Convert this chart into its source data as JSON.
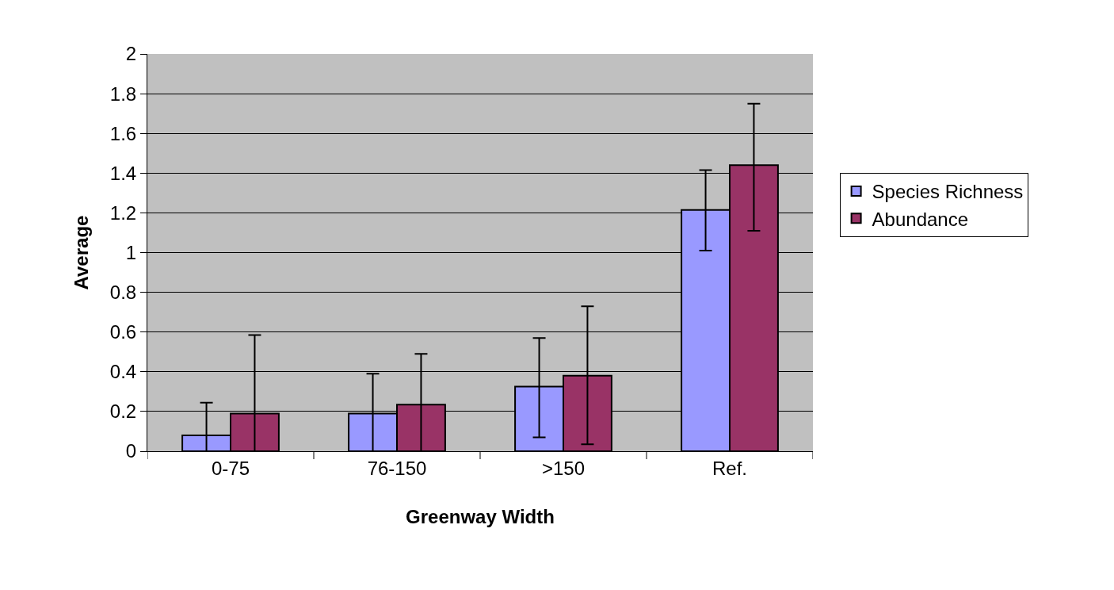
{
  "chart_data": {
    "type": "bar",
    "xlabel": "Greenway Width",
    "ylabel": "Average",
    "categories": [
      "0-75",
      "76-150",
      ">150",
      "Ref."
    ],
    "series": [
      {
        "name": "Species Richness",
        "color": "#9999ff",
        "values": [
          0.08,
          0.19,
          0.325,
          1.215
        ],
        "errors": [
          [
            0,
            0.245
          ],
          [
            0,
            0.39
          ],
          [
            0.07,
            0.57
          ],
          [
            1.01,
            1.415
          ]
        ]
      },
      {
        "name": "Abundance",
        "color": "#993366",
        "values": [
          0.19,
          0.235,
          0.38,
          1.44
        ],
        "errors": [
          [
            0,
            0.585
          ],
          [
            0,
            0.49
          ],
          [
            0.035,
            0.73
          ],
          [
            1.11,
            1.75
          ]
        ]
      }
    ],
    "ylim": [
      0,
      2
    ],
    "yticks": [
      0,
      0.2,
      0.4,
      0.6,
      0.8,
      1,
      1.2,
      1.4,
      1.6,
      1.8,
      2
    ],
    "grid": "y",
    "legend": "right"
  }
}
